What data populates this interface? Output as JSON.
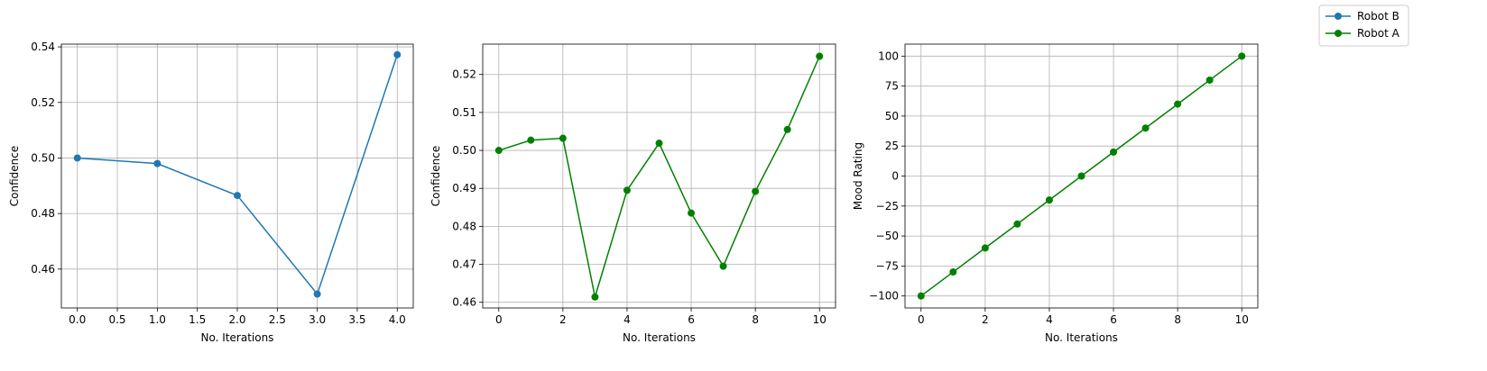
{
  "legend": {
    "placement": "top-right",
    "entries": [
      {
        "label": "Robot B",
        "color": "#1f77b4"
      },
      {
        "label": "Robot A",
        "color": "#008000"
      }
    ]
  },
  "chart_data": [
    {
      "type": "line",
      "title": "",
      "xlabel": "No. Iterations",
      "ylabel": "Confidence",
      "grid": true,
      "xlim": [
        -0.2,
        4.2
      ],
      "ylim": [
        0.446,
        0.541
      ],
      "xticks": [
        0.0,
        0.5,
        1.0,
        1.5,
        2.0,
        2.5,
        3.0,
        3.5,
        4.0
      ],
      "xtick_labels": [
        "0.0",
        "0.5",
        "1.0",
        "1.5",
        "2.0",
        "2.5",
        "3.0",
        "3.5",
        "4.0"
      ],
      "yticks": [
        0.46,
        0.48,
        0.5,
        0.52,
        0.54
      ],
      "ytick_labels": [
        "0.46",
        "0.48",
        "0.50",
        "0.52",
        "0.54"
      ],
      "series": [
        {
          "name": "Robot B",
          "color": "#1f77b4",
          "x": [
            0,
            1,
            2,
            3,
            4
          ],
          "y": [
            0.5,
            0.498,
            0.4865,
            0.451,
            0.5372
          ]
        }
      ]
    },
    {
      "type": "line",
      "title": "",
      "xlabel": "No. Iterations",
      "ylabel": "Confidence",
      "grid": true,
      "xlim": [
        -0.5,
        10.5
      ],
      "ylim": [
        0.4585,
        0.528
      ],
      "xticks": [
        0,
        2,
        4,
        6,
        8,
        10
      ],
      "xtick_labels": [
        "0",
        "2",
        "4",
        "6",
        "8",
        "10"
      ],
      "yticks": [
        0.46,
        0.47,
        0.48,
        0.49,
        0.5,
        0.51,
        0.52
      ],
      "ytick_labels": [
        "0.46",
        "0.47",
        "0.48",
        "0.49",
        "0.50",
        "0.51",
        "0.52"
      ],
      "series": [
        {
          "name": "Robot A",
          "color": "#008000",
          "x": [
            0,
            1,
            2,
            3,
            4,
            5,
            6,
            7,
            8,
            9,
            10
          ],
          "y": [
            0.5,
            0.5027,
            0.5032,
            0.4614,
            0.4895,
            0.5019,
            0.4835,
            0.4695,
            0.4892,
            0.5055,
            0.5248
          ]
        }
      ]
    },
    {
      "type": "line",
      "title": "",
      "xlabel": "No. Iterations",
      "ylabel": "Mood Rating",
      "grid": true,
      "xlim": [
        -0.5,
        10.5
      ],
      "ylim": [
        -110,
        110
      ],
      "xticks": [
        0,
        2,
        4,
        6,
        8,
        10
      ],
      "xtick_labels": [
        "0",
        "2",
        "4",
        "6",
        "8",
        "10"
      ],
      "yticks": [
        -100,
        -75,
        -50,
        -25,
        0,
        25,
        50,
        75,
        100
      ],
      "ytick_labels": [
        "−100",
        "−75",
        "−50",
        "−25",
        "0",
        "25",
        "50",
        "75",
        "100"
      ],
      "series": [
        {
          "name": "Robot A",
          "color": "#008000",
          "x": [
            0,
            1,
            2,
            3,
            4,
            5,
            6,
            7,
            8,
            9,
            10
          ],
          "y": [
            -100,
            -80,
            -60,
            -40,
            -20,
            0,
            20,
            40,
            60,
            80,
            100
          ]
        }
      ]
    }
  ]
}
